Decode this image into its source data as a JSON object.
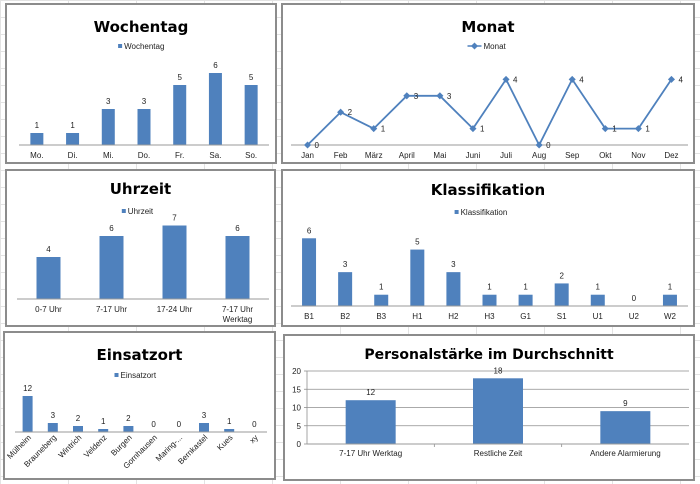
{
  "colors": {
    "series": "#4F81BD",
    "axis": "#9a9a9a",
    "grid": "#8e8e8e"
  },
  "chart_data": [
    {
      "id": "wochentag",
      "type": "bar",
      "title": "Wochentag",
      "legend": "Wochentag",
      "legend_position": "top",
      "categories": [
        "Mo.",
        "Di.",
        "Mi.",
        "Do.",
        "Fr.",
        "Sa.",
        "So."
      ],
      "values": [
        1,
        1,
        3,
        3,
        5,
        6,
        5
      ],
      "xlabel": "",
      "ylabel": "",
      "ylim": [
        0,
        7
      ],
      "grid": false
    },
    {
      "id": "monat",
      "type": "line",
      "title": "Monat",
      "legend": "Monat",
      "legend_position": "top",
      "categories": [
        "Jan",
        "Feb",
        "März",
        "April",
        "Mai",
        "Juni",
        "Juli",
        "Aug",
        "Sep",
        "Okt",
        "Nov",
        "Dez"
      ],
      "values": [
        0,
        2,
        1,
        3,
        3,
        1,
        4,
        0,
        4,
        1,
        1,
        4
      ],
      "xlabel": "",
      "ylabel": "",
      "ylim": [
        0,
        5
      ],
      "grid": false
    },
    {
      "id": "uhrzeit",
      "type": "bar",
      "title": "Uhrzeit",
      "legend": "Uhrzeit",
      "legend_position": "top",
      "categories": [
        "0-7 Uhr",
        "7-17 Uhr",
        "17-24 Uhr",
        "7-17 Uhr Werktag"
      ],
      "values": [
        4,
        6,
        7,
        6
      ],
      "xlabel": "",
      "ylabel": "",
      "ylim": [
        0,
        8
      ],
      "grid": false
    },
    {
      "id": "klassifikation",
      "type": "bar",
      "title": "Klassifikation",
      "legend": "Klassifikation",
      "legend_position": "top",
      "categories": [
        "B1",
        "B2",
        "B3",
        "H1",
        "H2",
        "H3",
        "G1",
        "S1",
        "U1",
        "U2",
        "W2"
      ],
      "values": [
        6,
        3,
        1,
        5,
        3,
        1,
        1,
        2,
        1,
        0,
        1
      ],
      "xlabel": "",
      "ylabel": "",
      "ylim": [
        0,
        7
      ],
      "grid": false
    },
    {
      "id": "einsatzort",
      "type": "bar",
      "title": "Einsatzort",
      "legend": "Einsatzort",
      "legend_position": "top",
      "categories": [
        "Mülheim",
        "Brauneberg",
        "Wintrich",
        "Veldenz",
        "Burgen",
        "Gornhausen",
        "Maring-...",
        "Bernkastel",
        "Kues",
        "xy"
      ],
      "values": [
        12,
        3,
        2,
        1,
        2,
        0,
        0,
        3,
        1,
        0
      ],
      "xlabel": "",
      "ylabel": "",
      "ylim": [
        0,
        14
      ],
      "grid": false
    },
    {
      "id": "personal",
      "type": "bar",
      "title": "Personalstärke im Durchschnitt",
      "legend": "",
      "legend_position": "none",
      "categories": [
        "7-17 Uhr Werktag",
        "Restliche Zeit",
        "Andere Alarmierung"
      ],
      "values": [
        12,
        18,
        9
      ],
      "yticks": [
        "0",
        "5",
        "10",
        "15",
        "20"
      ],
      "xlabel": "",
      "ylabel": "",
      "ylim": [
        0,
        20
      ],
      "grid": true
    }
  ]
}
